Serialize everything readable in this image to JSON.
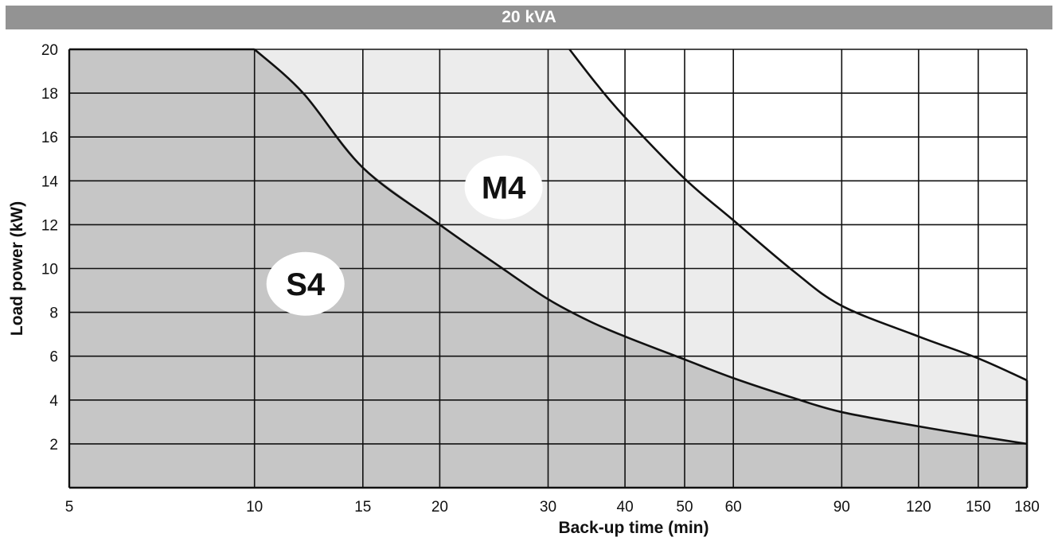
{
  "chart_data": {
    "type": "area",
    "title": "20 kVA",
    "xlabel": "Back-up time (min)",
    "ylabel": "Load power (kW)",
    "x_scale": "log",
    "xlim": [
      5,
      180
    ],
    "ylim": [
      0,
      20
    ],
    "x_ticks": [
      5,
      10,
      15,
      20,
      30,
      40,
      50,
      60,
      90,
      120,
      150,
      180
    ],
    "y_ticks": [
      2,
      4,
      6,
      8,
      10,
      12,
      14,
      16,
      18,
      20
    ],
    "grid": true,
    "series": [
      {
        "name": "S4",
        "fill": "#c6c6c6",
        "points": [
          [
            5,
            20
          ],
          [
            10,
            20
          ],
          [
            12,
            18
          ],
          [
            15,
            14.6
          ],
          [
            20,
            12
          ],
          [
            25,
            10.1
          ],
          [
            30,
            8.6
          ],
          [
            35,
            7.6
          ],
          [
            40,
            6.9
          ],
          [
            50,
            5.85
          ],
          [
            60,
            5.0
          ],
          [
            75,
            4.1
          ],
          [
            90,
            3.45
          ],
          [
            120,
            2.8
          ],
          [
            150,
            2.35
          ],
          [
            180,
            2.0
          ]
        ]
      },
      {
        "name": "M4",
        "fill": "#ececec",
        "points": [
          [
            32.5,
            20
          ],
          [
            36,
            18.4
          ],
          [
            40,
            16.9
          ],
          [
            50,
            14.1
          ],
          [
            60,
            12.2
          ],
          [
            75,
            9.9
          ],
          [
            90,
            8.3
          ],
          [
            120,
            6.9
          ],
          [
            150,
            5.9
          ],
          [
            180,
            4.9
          ]
        ]
      }
    ],
    "annotations": [
      {
        "text": "S4",
        "x": 12.1,
        "y": 9.3
      },
      {
        "text": "M4",
        "x": 25.4,
        "y": 13.7
      }
    ],
    "colors": {
      "grid": "#111111",
      "curve": "#111111",
      "title_bar": "#939393",
      "label_ellipse": "#ffffff"
    }
  }
}
